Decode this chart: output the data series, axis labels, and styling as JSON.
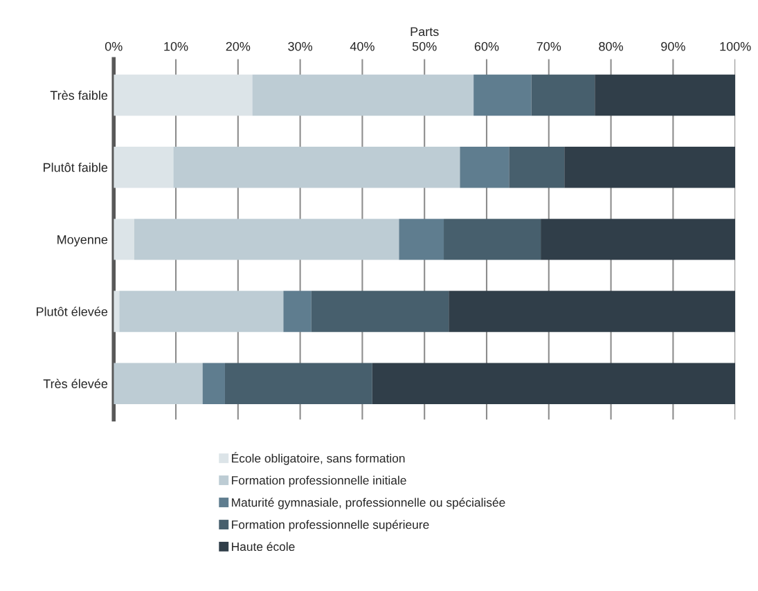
{
  "chart_data": {
    "type": "bar",
    "orientation": "horizontal",
    "stacked": true,
    "xlabel": "Parts",
    "categories": [
      "Très faible",
      "Plutôt faible",
      "Moyenne",
      "Plutôt élevée",
      "Très élevée"
    ],
    "series": [
      {
        "name": "École obligatoire, sans formation",
        "color": "#dce4e8",
        "values": [
          22.3,
          9.6,
          3.3,
          0.9,
          0
        ]
      },
      {
        "name": "Formation professionnelle initiale",
        "color": "#bdccd4",
        "values": [
          35.6,
          46.1,
          42.6,
          26.4,
          14.3
        ]
      },
      {
        "name": "Maturité gymnasiale, professionnelle ou spécialisée",
        "color": "#5f7d8f",
        "values": [
          9.3,
          7.9,
          7.2,
          4.5,
          3.6
        ]
      },
      {
        "name": "Formation professionnelle supérieure",
        "color": "#475f6d",
        "values": [
          10.2,
          8.9,
          15.6,
          22.1,
          23.7
        ]
      },
      {
        "name": "Haute école",
        "color": "#303e49",
        "values": [
          22.6,
          27.5,
          31.3,
          46.1,
          58.4
        ]
      }
    ],
    "xlim": [
      0,
      100
    ],
    "xticks": [
      {
        "value": 0,
        "label": "0%"
      },
      {
        "value": 10,
        "label": "10%"
      },
      {
        "value": 20,
        "label": "20%"
      },
      {
        "value": 30,
        "label": "30%"
      },
      {
        "value": 40,
        "label": "40%"
      },
      {
        "value": 50,
        "label": "50%"
      },
      {
        "value": 60,
        "label": "60%"
      },
      {
        "value": 70,
        "label": "70%"
      },
      {
        "value": 80,
        "label": "80%"
      },
      {
        "value": 90,
        "label": "90%"
      },
      {
        "value": 100,
        "label": "100%"
      }
    ],
    "grid": "x",
    "legend": "bottom",
    "marker": "square"
  }
}
